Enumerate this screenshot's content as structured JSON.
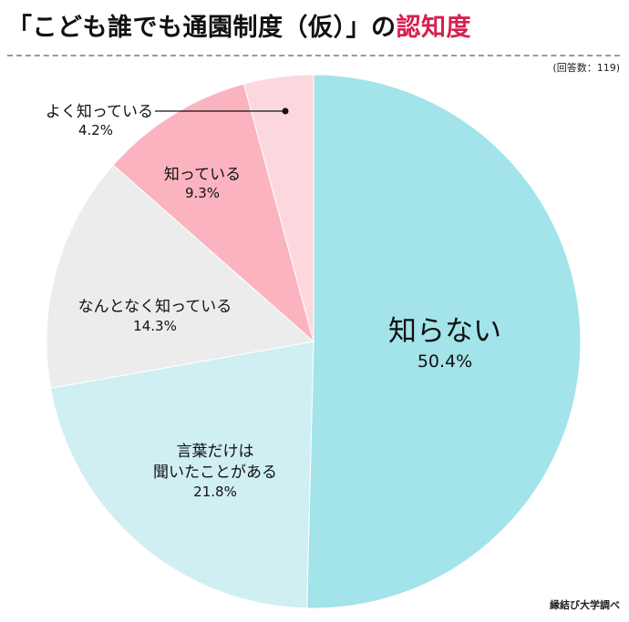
{
  "title": {
    "main": "「こども誰でも通園制度（仮）」の",
    "accent": "認知度"
  },
  "respondents": "(回答数：119)",
  "source": "縁結び大学調べ",
  "colors": {
    "accent": "#d6204f",
    "slice_know_well": "#fcd8de",
    "slice_know": "#fbb4bf",
    "slice_vaguely": "#ececec",
    "slice_heard": "#cfeff3",
    "slice_dont_know": "#a3e3ea"
  },
  "chart_data": {
    "type": "pie",
    "title": "「こども誰でも通園制度（仮）」の認知度",
    "start": "12 o'clock",
    "direction": "clockwise",
    "slices": [
      {
        "label": "知らない",
        "value": 50.4,
        "pct": "50.4%",
        "color": "#a3e3ea"
      },
      {
        "label": "言葉だけは聞いたことがある",
        "value": 21.8,
        "pct": "21.8%",
        "color": "#cfeff3"
      },
      {
        "label": "なんとなく知っている",
        "value": 14.3,
        "pct": "14.3%",
        "color": "#ececec"
      },
      {
        "label": "知っている",
        "value": 9.3,
        "pct": "9.3%",
        "color": "#fbb4bf"
      },
      {
        "label": "よく知っている",
        "value": 4.2,
        "pct": "4.2%",
        "color": "#fcd8de"
      }
    ],
    "label_lines": {
      "heard_line1": "言葉だけは",
      "heard_line2": "聞いたことがある"
    }
  }
}
